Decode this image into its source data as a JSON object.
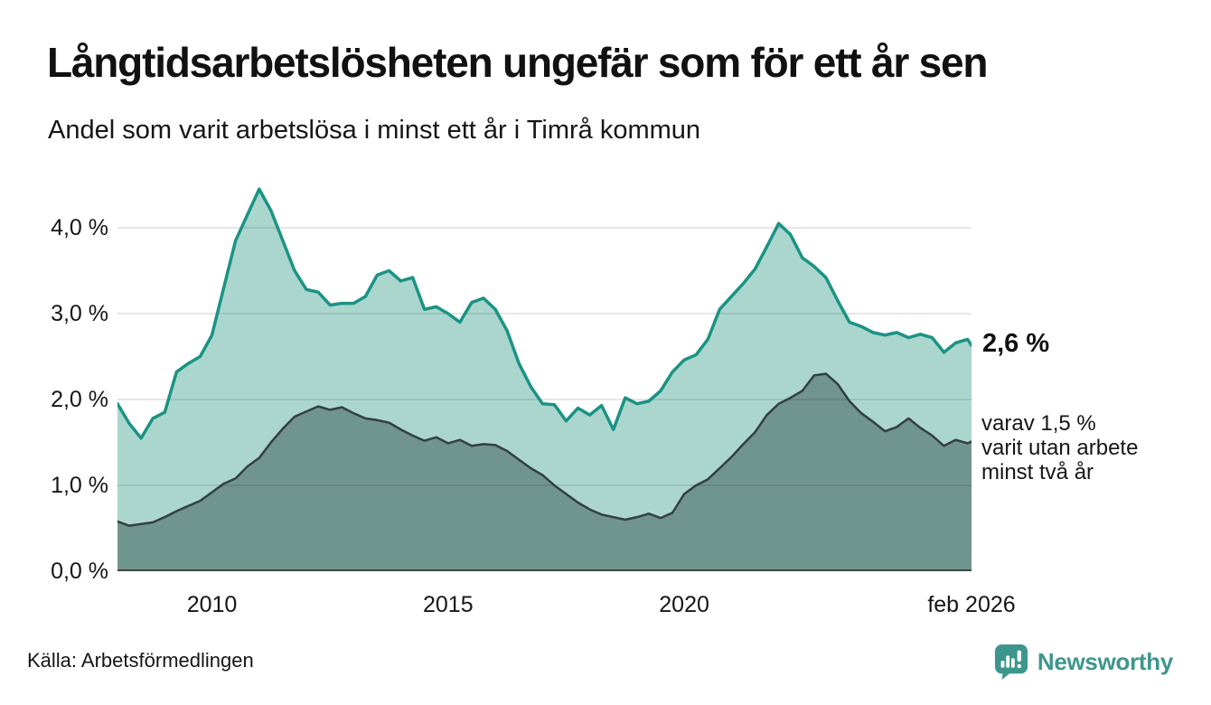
{
  "header": {
    "title": "Långtidsarbetslösheten ungefär som för ett år sen",
    "subtitle": "Andel som varit arbetslösa i minst ett år i Timrå kommun"
  },
  "chart_data": {
    "type": "area",
    "title": "Långtidsarbetslösheten ungefär som för ett år sen",
    "subtitle": "Andel som varit arbetslösa i minst ett år i Timrå kommun",
    "xlabel": "",
    "ylabel": "",
    "x_unit": "decimal_year",
    "xlim": [
      2008,
      2026.083
    ],
    "ylim": [
      0,
      4.547
    ],
    "grid": "horizontal",
    "x": [
      2008,
      2008.25,
      2008.5,
      2008.75,
      2009,
      2009.25,
      2009.5,
      2009.75,
      2010,
      2010.25,
      2010.5,
      2010.75,
      2011,
      2011.25,
      2011.5,
      2011.75,
      2012,
      2012.25,
      2012.5,
      2012.75,
      2013,
      2013.25,
      2013.5,
      2013.75,
      2014,
      2014.25,
      2014.5,
      2014.75,
      2015,
      2015.25,
      2015.5,
      2015.75,
      2016,
      2016.25,
      2016.5,
      2016.75,
      2017,
      2017.25,
      2017.5,
      2017.75,
      2018,
      2018.25,
      2018.5,
      2018.75,
      2019,
      2019.25,
      2019.5,
      2019.75,
      2020,
      2020.25,
      2020.5,
      2020.75,
      2021,
      2021.25,
      2021.5,
      2021.75,
      2022,
      2022.25,
      2022.5,
      2022.75,
      2023,
      2023.25,
      2023.5,
      2023.75,
      2024,
      2024.25,
      2024.5,
      2024.75,
      2025,
      2025.25,
      2025.5,
      2025.75,
      2026,
      2026.083
    ],
    "series": [
      {
        "name": "arbetslösa minst ett år",
        "line_color": "#1a9384",
        "fill_color": "#abd6ce",
        "line_width": 3.5,
        "values": [
          1.95,
          1.72,
          1.55,
          1.78,
          1.85,
          2.32,
          2.42,
          2.5,
          2.75,
          3.3,
          3.85,
          4.15,
          4.45,
          4.2,
          3.85,
          3.5,
          3.28,
          3.25,
          3.1,
          3.12,
          3.12,
          3.2,
          3.45,
          3.5,
          3.38,
          3.42,
          3.05,
          3.08,
          3.0,
          2.9,
          3.13,
          3.18,
          3.05,
          2.8,
          2.42,
          2.15,
          1.95,
          1.94,
          1.75,
          1.9,
          1.82,
          1.93,
          1.65,
          2.02,
          1.95,
          1.98,
          2.1,
          2.32,
          2.46,
          2.52,
          2.7,
          3.05,
          3.2,
          3.35,
          3.52,
          3.78,
          4.05,
          3.92,
          3.65,
          3.55,
          3.42,
          3.15,
          2.9,
          2.85,
          2.78,
          2.75,
          2.78,
          2.72,
          2.76,
          2.72,
          2.55,
          2.66,
          2.7,
          2.63
        ]
      },
      {
        "name": "arbetslösa minst två år",
        "line_color": "#33403d",
        "fill_color": "#70948e",
        "line_width": 2.5,
        "values": [
          0.58,
          0.53,
          0.55,
          0.57,
          0.63,
          0.7,
          0.76,
          0.82,
          0.92,
          1.02,
          1.08,
          1.22,
          1.32,
          1.5,
          1.66,
          1.8,
          1.86,
          1.92,
          1.88,
          1.91,
          1.84,
          1.78,
          1.76,
          1.73,
          1.65,
          1.58,
          1.52,
          1.56,
          1.49,
          1.53,
          1.46,
          1.48,
          1.47,
          1.4,
          1.3,
          1.2,
          1.12,
          1.0,
          0.9,
          0.8,
          0.72,
          0.66,
          0.63,
          0.6,
          0.63,
          0.67,
          0.62,
          0.68,
          0.9,
          1.0,
          1.07,
          1.2,
          1.33,
          1.48,
          1.62,
          1.82,
          1.95,
          2.02,
          2.1,
          2.28,
          2.3,
          2.18,
          1.98,
          1.84,
          1.74,
          1.63,
          1.68,
          1.78,
          1.67,
          1.58,
          1.46,
          1.53,
          1.49,
          1.51
        ]
      }
    ],
    "yticks": [
      {
        "value": 0,
        "label": "0,0 %"
      },
      {
        "value": 1,
        "label": "1,0 %"
      },
      {
        "value": 2,
        "label": "2,0 %"
      },
      {
        "value": 3,
        "label": "3,0 %"
      },
      {
        "value": 4,
        "label": "4,0 %"
      }
    ],
    "xticks": [
      {
        "value": 2010,
        "label": "2010"
      },
      {
        "value": 2015,
        "label": "2015"
      },
      {
        "value": 2020,
        "label": "2020"
      },
      {
        "value": 2026.083,
        "label": "feb 2026"
      }
    ],
    "end_labels": {
      "primary": "2,6 %",
      "secondary_lines": [
        "varav 1,5 %",
        "varit utan arbete",
        "minst två år"
      ]
    },
    "grid_color": "rgba(17,17,17,0.10)",
    "axis_line_color": "#444444"
  },
  "footer": {
    "source": "Källa: Arbetsförmedlingen",
    "brand_name": "Newsworthy"
  },
  "colors": {
    "brand_teal": "#3d968c",
    "text": "#111111"
  }
}
